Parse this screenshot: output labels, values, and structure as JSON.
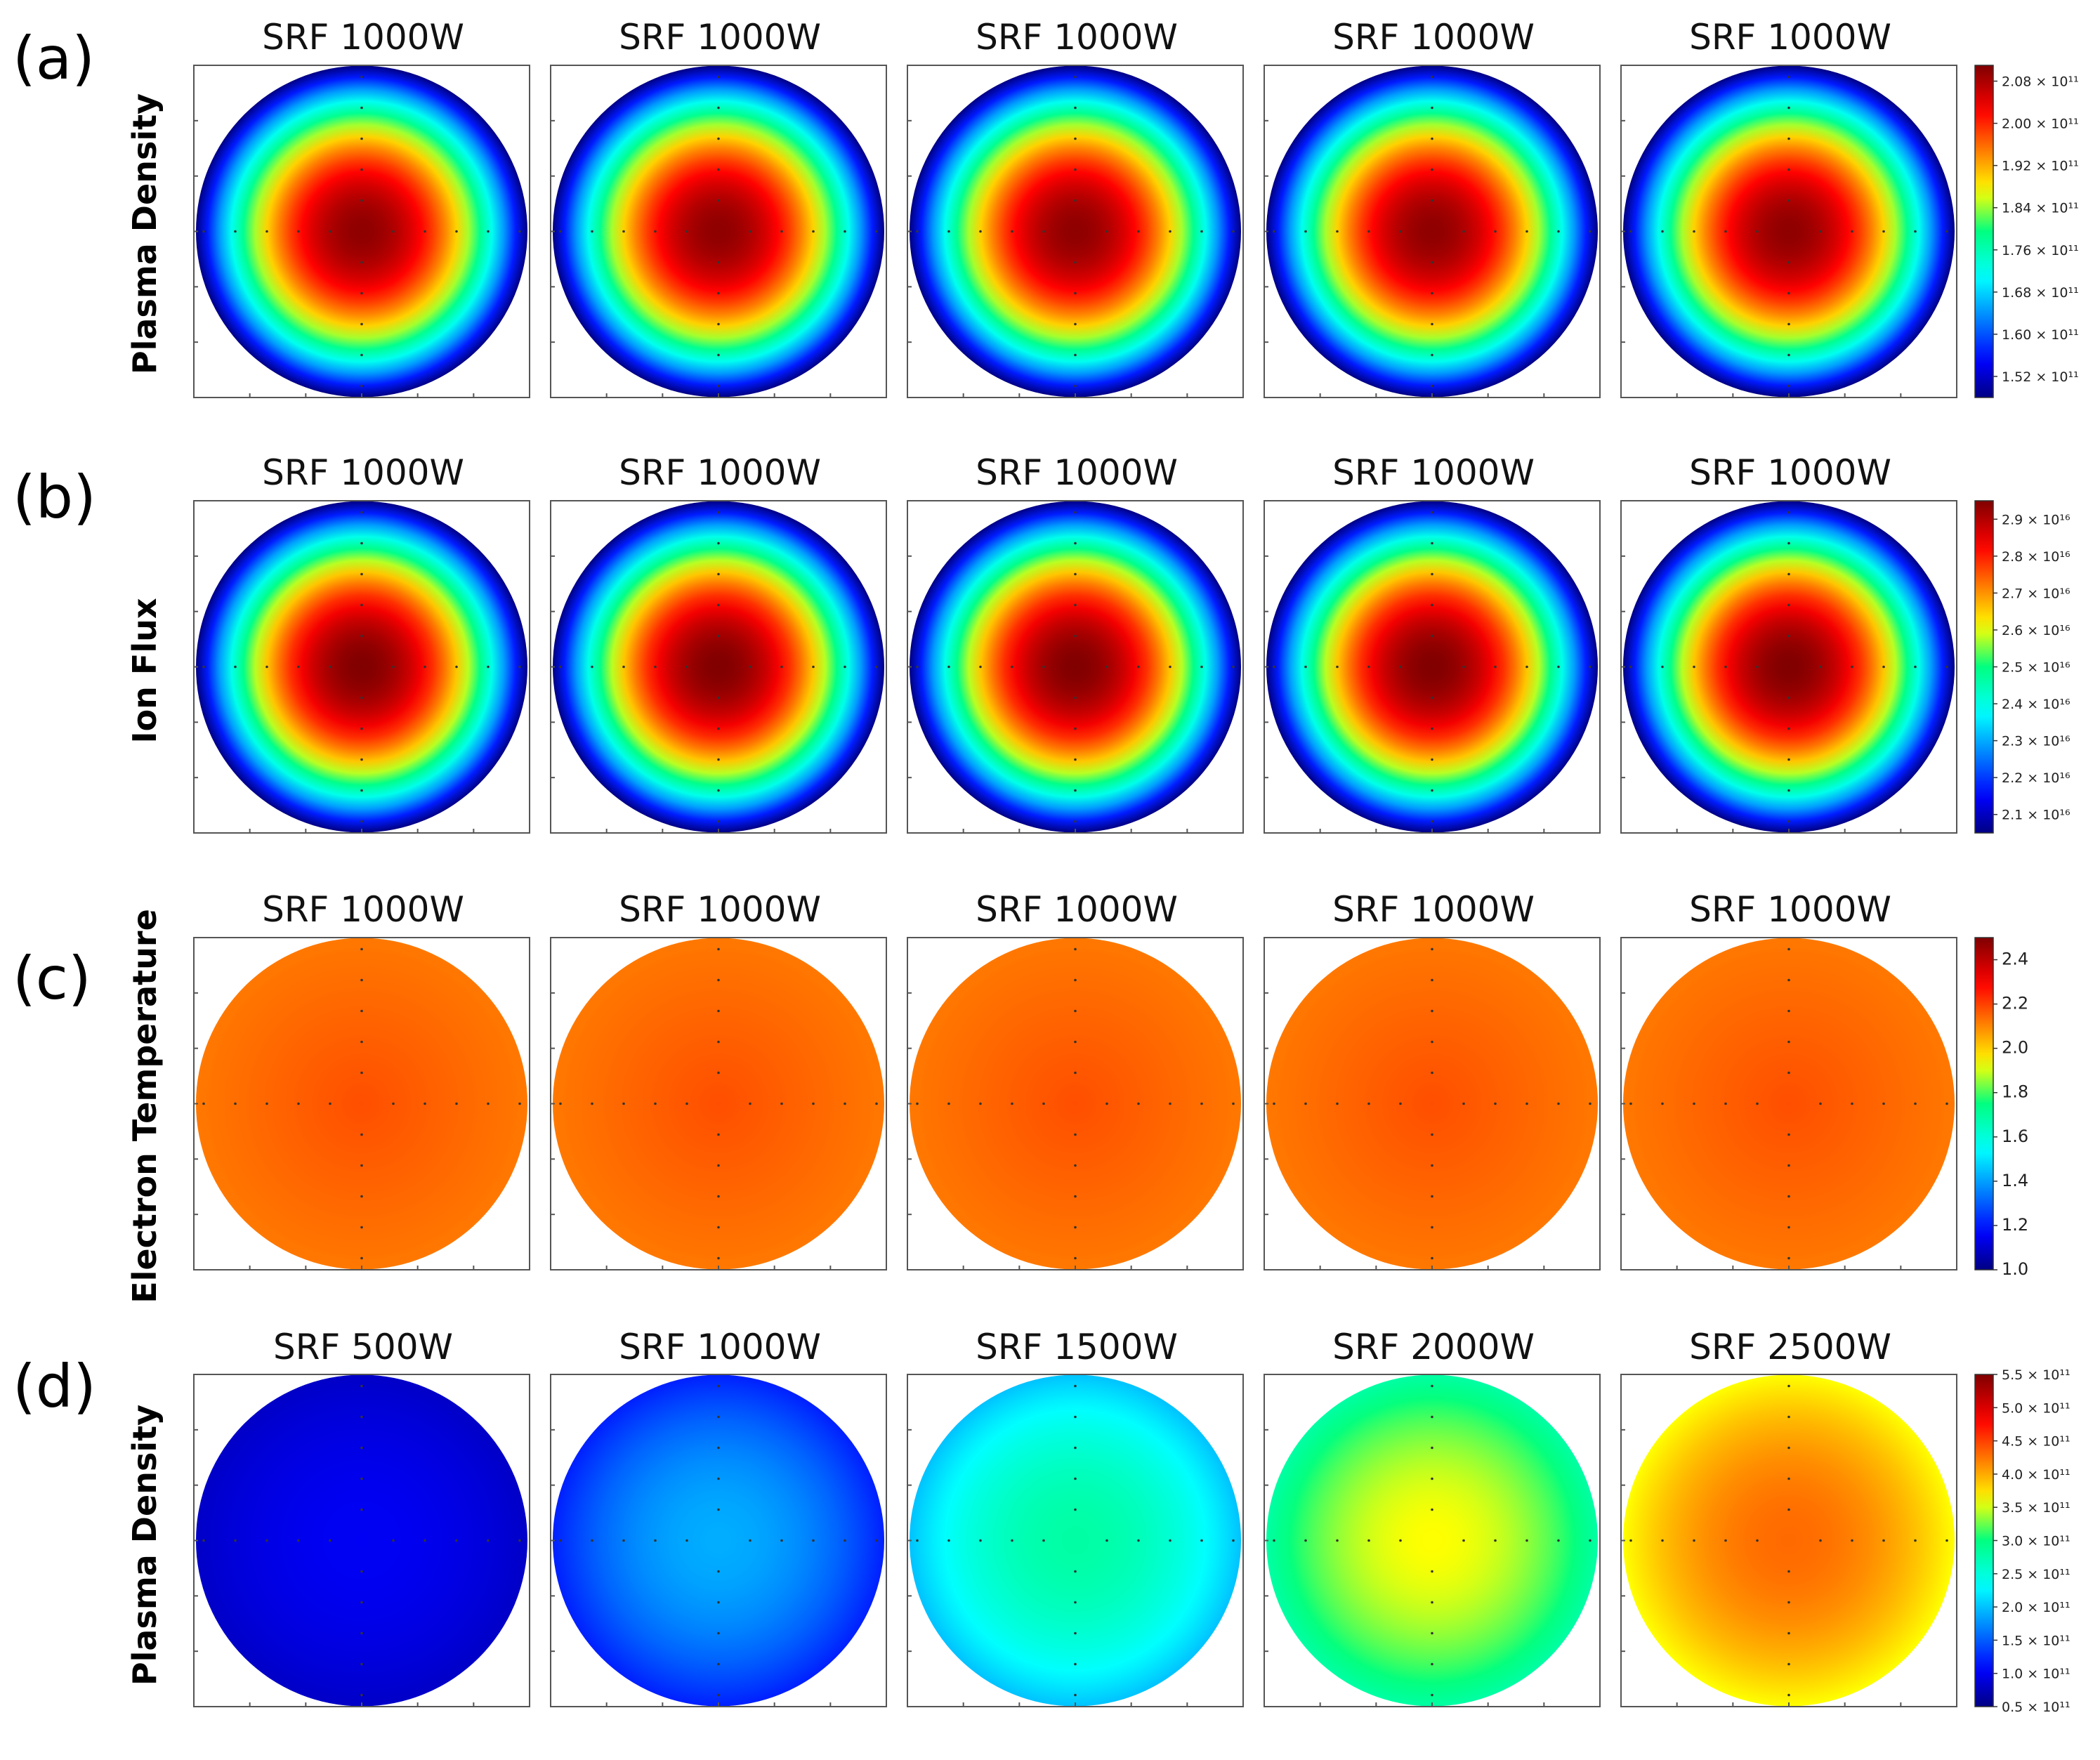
{
  "chart_data": [
    {
      "type": "heatmap",
      "panel_label": "(a)",
      "row_label": "Plasma Density",
      "titles": [
        "SRF 1000W",
        "SRF 1000W",
        "SRF 1000W",
        "SRF 1000W",
        "SRF 1000W"
      ],
      "colorbar": {
        "min": 1.48,
        "max": 2.11,
        "ticks": [
          1.52,
          1.6,
          1.68,
          1.76,
          1.84,
          1.92,
          2.0,
          2.08
        ],
        "tick_labels": [
          "1.52 × 10¹¹",
          "1.60 × 10¹¹",
          "1.68 × 10¹¹",
          "1.76 × 10¹¹",
          "1.84 × 10¹¹",
          "1.92 × 10¹¹",
          "2.00 × 10¹¹",
          "2.08 × 10¹¹"
        ]
      },
      "maps": [
        {
          "center": 2.1,
          "edge": 1.48,
          "profile": "radial"
        },
        {
          "center": 2.1,
          "edge": 1.48,
          "profile": "radial"
        },
        {
          "center": 2.1,
          "edge": 1.48,
          "profile": "radial"
        },
        {
          "center": 2.1,
          "edge": 1.48,
          "profile": "radial"
        },
        {
          "center": 2.1,
          "edge": 1.48,
          "profile": "radial"
        }
      ]
    },
    {
      "type": "heatmap",
      "panel_label": "(b)",
      "row_label": "Ion Flux",
      "titles": [
        "SRF 1000W",
        "SRF 1000W",
        "SRF 1000W",
        "SRF 1000W",
        "SRF 1000W"
      ],
      "colorbar": {
        "min": 2.05,
        "max": 2.95,
        "ticks": [
          2.1,
          2.2,
          2.3,
          2.4,
          2.5,
          2.6,
          2.7,
          2.8,
          2.9
        ],
        "tick_labels": [
          "2.1 × 10¹⁶",
          "2.2 × 10¹⁶",
          "2.3 × 10¹⁶",
          "2.4 × 10¹⁶",
          "2.5 × 10¹⁶",
          "2.6 × 10¹⁶",
          "2.7 × 10¹⁶",
          "2.8 × 10¹⁶",
          "2.9 × 10¹⁶"
        ]
      },
      "maps": [
        {
          "center": 2.95,
          "edge": 2.05,
          "profile": "radial"
        },
        {
          "center": 2.95,
          "edge": 2.05,
          "profile": "radial"
        },
        {
          "center": 2.95,
          "edge": 2.05,
          "profile": "radial"
        },
        {
          "center": 2.95,
          "edge": 2.05,
          "profile": "radial"
        },
        {
          "center": 2.95,
          "edge": 2.05,
          "profile": "radial"
        }
      ]
    },
    {
      "type": "heatmap",
      "panel_label": "(c)",
      "row_label": "Electron Temperature",
      "titles": [
        "SRF 1000W",
        "SRF 1000W",
        "SRF 1000W",
        "SRF 1000W",
        "SRF 1000W"
      ],
      "colorbar": {
        "min": 1.0,
        "max": 2.5,
        "ticks": [
          1.0,
          1.2,
          1.4,
          1.6,
          1.8,
          2.0,
          2.2,
          2.4
        ],
        "tick_labels": [
          "1.0",
          "1.2",
          "1.4",
          "1.6",
          "1.8",
          "2.0",
          "2.2",
          "2.4"
        ]
      },
      "maps": [
        {
          "center": 2.18,
          "edge": 2.12,
          "profile": "uniform"
        },
        {
          "center": 2.18,
          "edge": 2.12,
          "profile": "uniform"
        },
        {
          "center": 2.18,
          "edge": 2.12,
          "profile": "uniform"
        },
        {
          "center": 2.18,
          "edge": 2.12,
          "profile": "uniform"
        },
        {
          "center": 2.18,
          "edge": 2.12,
          "profile": "uniform"
        }
      ]
    },
    {
      "type": "heatmap",
      "panel_label": "(d)",
      "row_label": "Plasma Density",
      "titles": [
        "SRF 500W",
        "SRF 1000W",
        "SRF 1500W",
        "SRF 2000W",
        "SRF 2500W"
      ],
      "colorbar": {
        "min": 0.5,
        "max": 5.5,
        "ticks": [
          0.5,
          1.0,
          1.5,
          2.0,
          2.5,
          3.0,
          3.5,
          4.0,
          4.5,
          5.0,
          5.5
        ],
        "tick_labels": [
          "0.5 × 10¹¹",
          "1.0 × 10¹¹",
          "1.5 × 10¹¹",
          "2.0 × 10¹¹",
          "2.5 × 10¹¹",
          "3.0 × 10¹¹",
          "3.5 × 10¹¹",
          "4.0 × 10¹¹",
          "4.5 × 10¹¹",
          "5.0 × 10¹¹",
          "5.5 × 10¹¹"
        ]
      },
      "maps": [
        {
          "center": 1.0,
          "edge": 0.8,
          "profile": "radial"
        },
        {
          "center": 1.9,
          "edge": 1.2,
          "profile": "radial"
        },
        {
          "center": 2.8,
          "edge": 2.0,
          "profile": "radial"
        },
        {
          "center": 3.6,
          "edge": 2.8,
          "profile": "radial"
        },
        {
          "center": 4.3,
          "edge": 3.6,
          "profile": "radial"
        }
      ]
    }
  ]
}
